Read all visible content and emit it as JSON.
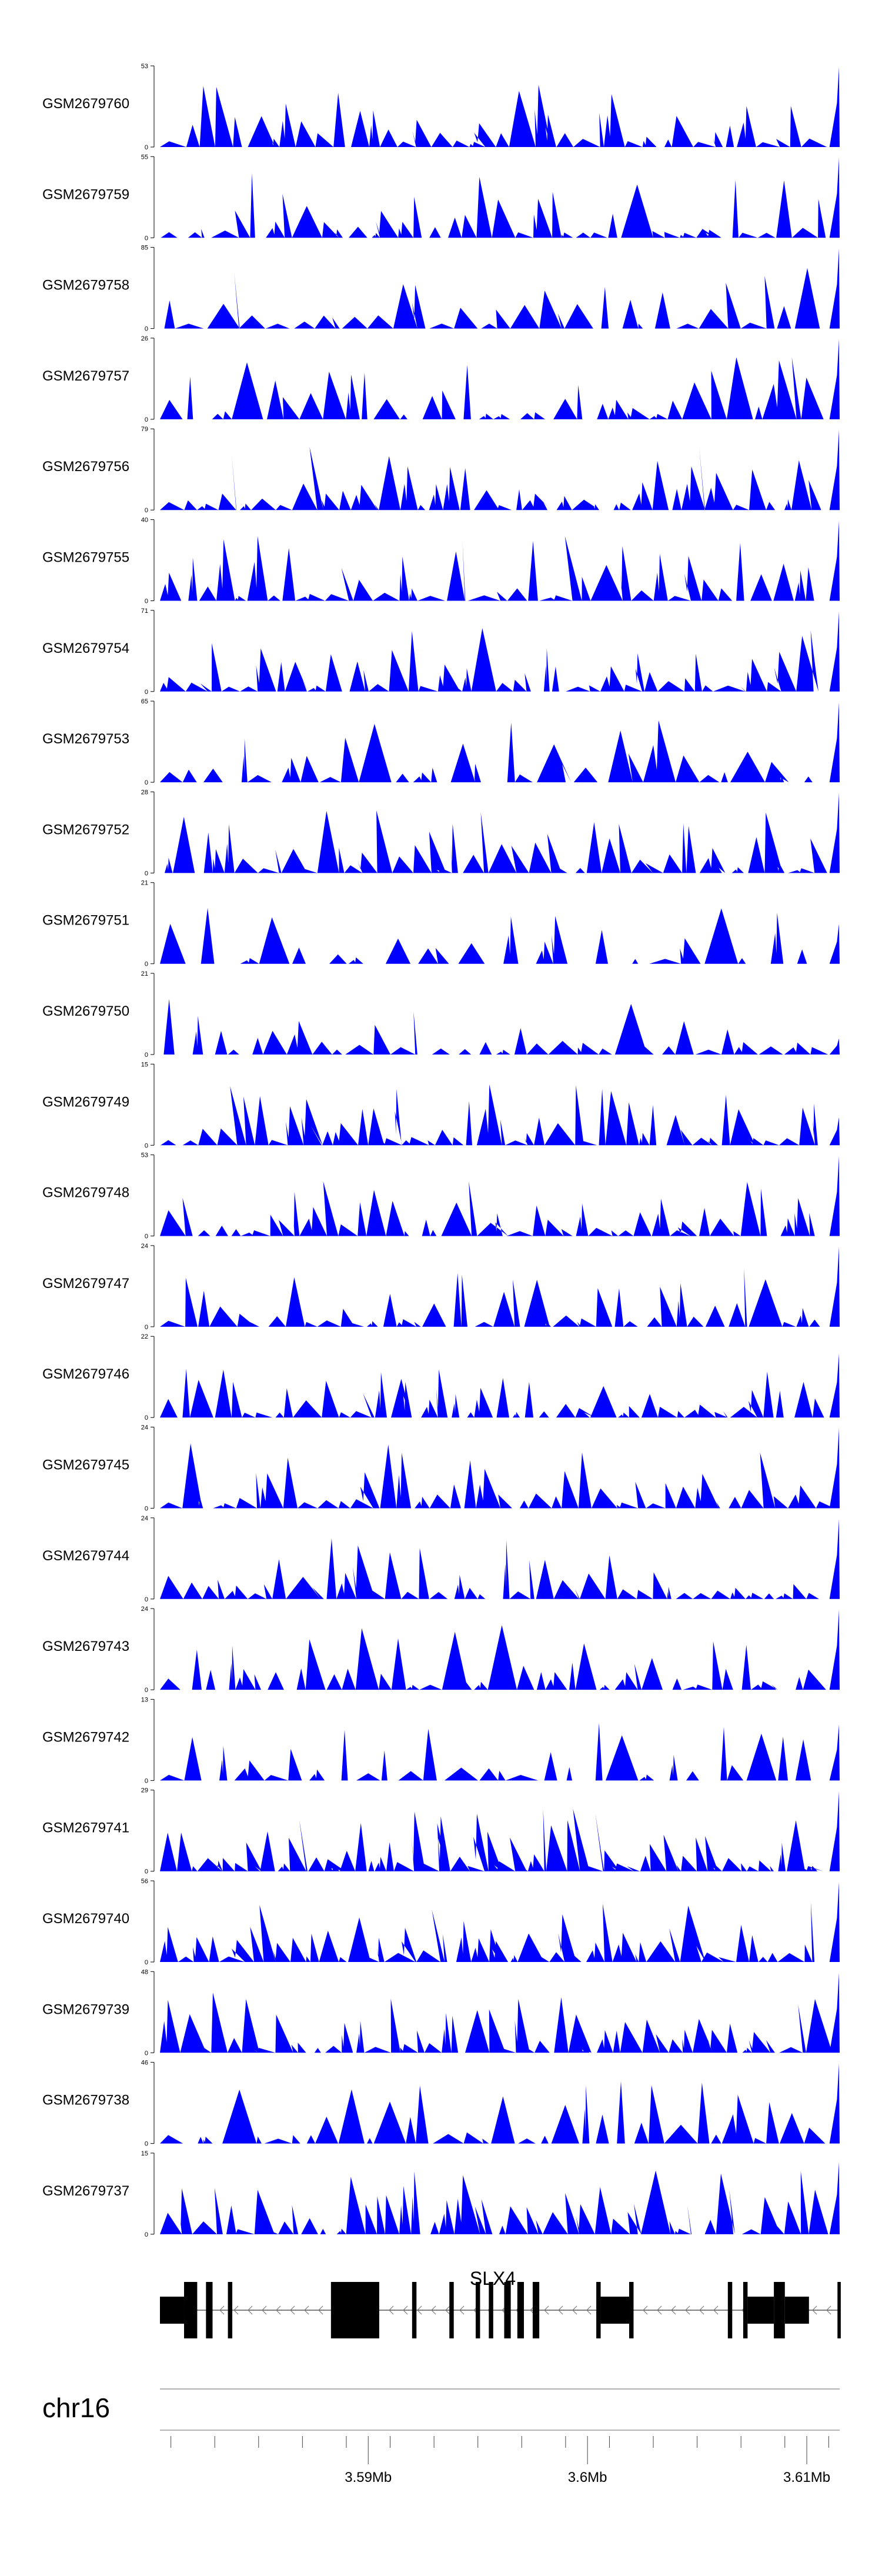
{
  "chart_data": {
    "type": "area",
    "title": "",
    "chromosome": "chr16",
    "x_range_mb": [
      3.5805,
      3.6115
    ],
    "x_ticks_mb": [
      3.581,
      3.583,
      3.585,
      3.587,
      3.589,
      3.591,
      3.593,
      3.595,
      3.597,
      3.599,
      3.601,
      3.603,
      3.605,
      3.607,
      3.609,
      3.611
    ],
    "x_tick_labels": [
      {
        "pos_mb": 3.59,
        "label": "3.59Mb"
      },
      {
        "pos_mb": 3.6,
        "label": "3.6Mb"
      },
      {
        "pos_mb": 3.61,
        "label": "3.61Mb"
      }
    ],
    "gene": {
      "name": "SLX4",
      "strand": "-",
      "start_mb": 3.5805,
      "end_mb": 3.6115,
      "exons": [
        {
          "start": 3.5805,
          "end": 3.5816,
          "type": "utr"
        },
        {
          "start": 3.5816,
          "end": 3.5822,
          "type": "cds"
        },
        {
          "start": 3.5826,
          "end": 3.5829,
          "type": "cds"
        },
        {
          "start": 3.5836,
          "end": 3.5838,
          "type": "cds"
        },
        {
          "start": 3.5883,
          "end": 3.5905,
          "type": "cds"
        },
        {
          "start": 3.592,
          "end": 3.5922,
          "type": "cds"
        },
        {
          "start": 3.5937,
          "end": 3.5939,
          "type": "cds"
        },
        {
          "start": 3.5949,
          "end": 3.5951,
          "type": "cds"
        },
        {
          "start": 3.5955,
          "end": 3.5957,
          "type": "cds"
        },
        {
          "start": 3.5962,
          "end": 3.5965,
          "type": "cds"
        },
        {
          "start": 3.5968,
          "end": 3.5971,
          "type": "cds"
        },
        {
          "start": 3.5975,
          "end": 3.5978,
          "type": "cds"
        },
        {
          "start": 3.6004,
          "end": 3.6006,
          "type": "cds"
        },
        {
          "start": 3.6006,
          "end": 3.6019,
          "type": "utr"
        },
        {
          "start": 3.6019,
          "end": 3.6021,
          "type": "cds"
        },
        {
          "start": 3.6064,
          "end": 3.6066,
          "type": "cds"
        },
        {
          "start": 3.6071,
          "end": 3.6073,
          "type": "cds"
        },
        {
          "start": 3.6073,
          "end": 3.6085,
          "type": "utr"
        },
        {
          "start": 3.6085,
          "end": 3.609,
          "type": "cds"
        },
        {
          "start": 3.609,
          "end": 3.6101,
          "type": "utr"
        },
        {
          "start": 3.6114,
          "end": 3.61155,
          "type": "cds"
        }
      ]
    },
    "series": [
      {
        "name": "GSM2679760",
        "ymax": 53,
        "seed": 7601,
        "end_peak": 1.0,
        "n_peaks": 40
      },
      {
        "name": "GSM2679759",
        "ymax": 55,
        "seed": 7592,
        "end_peak": 1.0,
        "n_peaks": 40
      },
      {
        "name": "GSM2679758",
        "ymax": 85,
        "seed": 7583,
        "end_peak": 1.0,
        "n_peaks": 32
      },
      {
        "name": "GSM2679757",
        "ymax": 26,
        "seed": 7574,
        "end_peak": 1.0,
        "n_peaks": 34
      },
      {
        "name": "GSM2679756",
        "ymax": 79,
        "seed": 7565,
        "end_peak": 1.0,
        "n_peaks": 42
      },
      {
        "name": "GSM2679755",
        "ymax": 40,
        "seed": 7556,
        "end_peak": 1.0,
        "n_peaks": 38
      },
      {
        "name": "GSM2679754",
        "ymax": 71,
        "seed": 7547,
        "end_peak": 1.0,
        "n_peaks": 44
      },
      {
        "name": "GSM2679753",
        "ymax": 65,
        "seed": 7538,
        "end_peak": 1.0,
        "n_peaks": 30
      },
      {
        "name": "GSM2679752",
        "ymax": 28,
        "seed": 7529,
        "end_peak": 1.0,
        "n_peaks": 44
      },
      {
        "name": "GSM2679751",
        "ymax": 21,
        "seed": 7510,
        "end_peak": 0.5,
        "n_peaks": 22
      },
      {
        "name": "GSM2679750",
        "ymax": 21,
        "seed": 7501,
        "end_peak": 0.2,
        "n_peaks": 32
      },
      {
        "name": "GSM2679749",
        "ymax": 15,
        "seed": 7492,
        "end_peak": 0.35,
        "n_peaks": 46
      },
      {
        "name": "GSM2679748",
        "ymax": 53,
        "seed": 7483,
        "end_peak": 1.0,
        "n_peaks": 42
      },
      {
        "name": "GSM2679747",
        "ymax": 24,
        "seed": 7474,
        "end_peak": 1.0,
        "n_peaks": 40
      },
      {
        "name": "GSM2679746",
        "ymax": 22,
        "seed": 7465,
        "end_peak": 0.8,
        "n_peaks": 44
      },
      {
        "name": "GSM2679745",
        "ymax": 24,
        "seed": 7456,
        "end_peak": 1.0,
        "n_peaks": 40
      },
      {
        "name": "GSM2679744",
        "ymax": 24,
        "seed": 7447,
        "end_peak": 1.0,
        "n_peaks": 42
      },
      {
        "name": "GSM2679743",
        "ymax": 24,
        "seed": 7438,
        "end_peak": 1.0,
        "n_peaks": 38
      },
      {
        "name": "GSM2679742",
        "ymax": 13,
        "seed": 7429,
        "end_peak": 0.7,
        "n_peaks": 28
      },
      {
        "name": "GSM2679741",
        "ymax": 29,
        "seed": 7410,
        "end_peak": 1.0,
        "n_peaks": 60
      },
      {
        "name": "GSM2679740",
        "ymax": 56,
        "seed": 7401,
        "end_peak": 1.0,
        "n_peaks": 50
      },
      {
        "name": "GSM2679739",
        "ymax": 48,
        "seed": 7392,
        "end_peak": 1.0,
        "n_peaks": 46
      },
      {
        "name": "GSM2679738",
        "ymax": 46,
        "seed": 7383,
        "end_peak": 1.0,
        "n_peaks": 34
      },
      {
        "name": "GSM2679737",
        "ymax": 15,
        "seed": 7374,
        "end_peak": 0.9,
        "n_peaks": 48
      }
    ],
    "ylim_min": 0,
    "fill_color": "#0000ff"
  }
}
